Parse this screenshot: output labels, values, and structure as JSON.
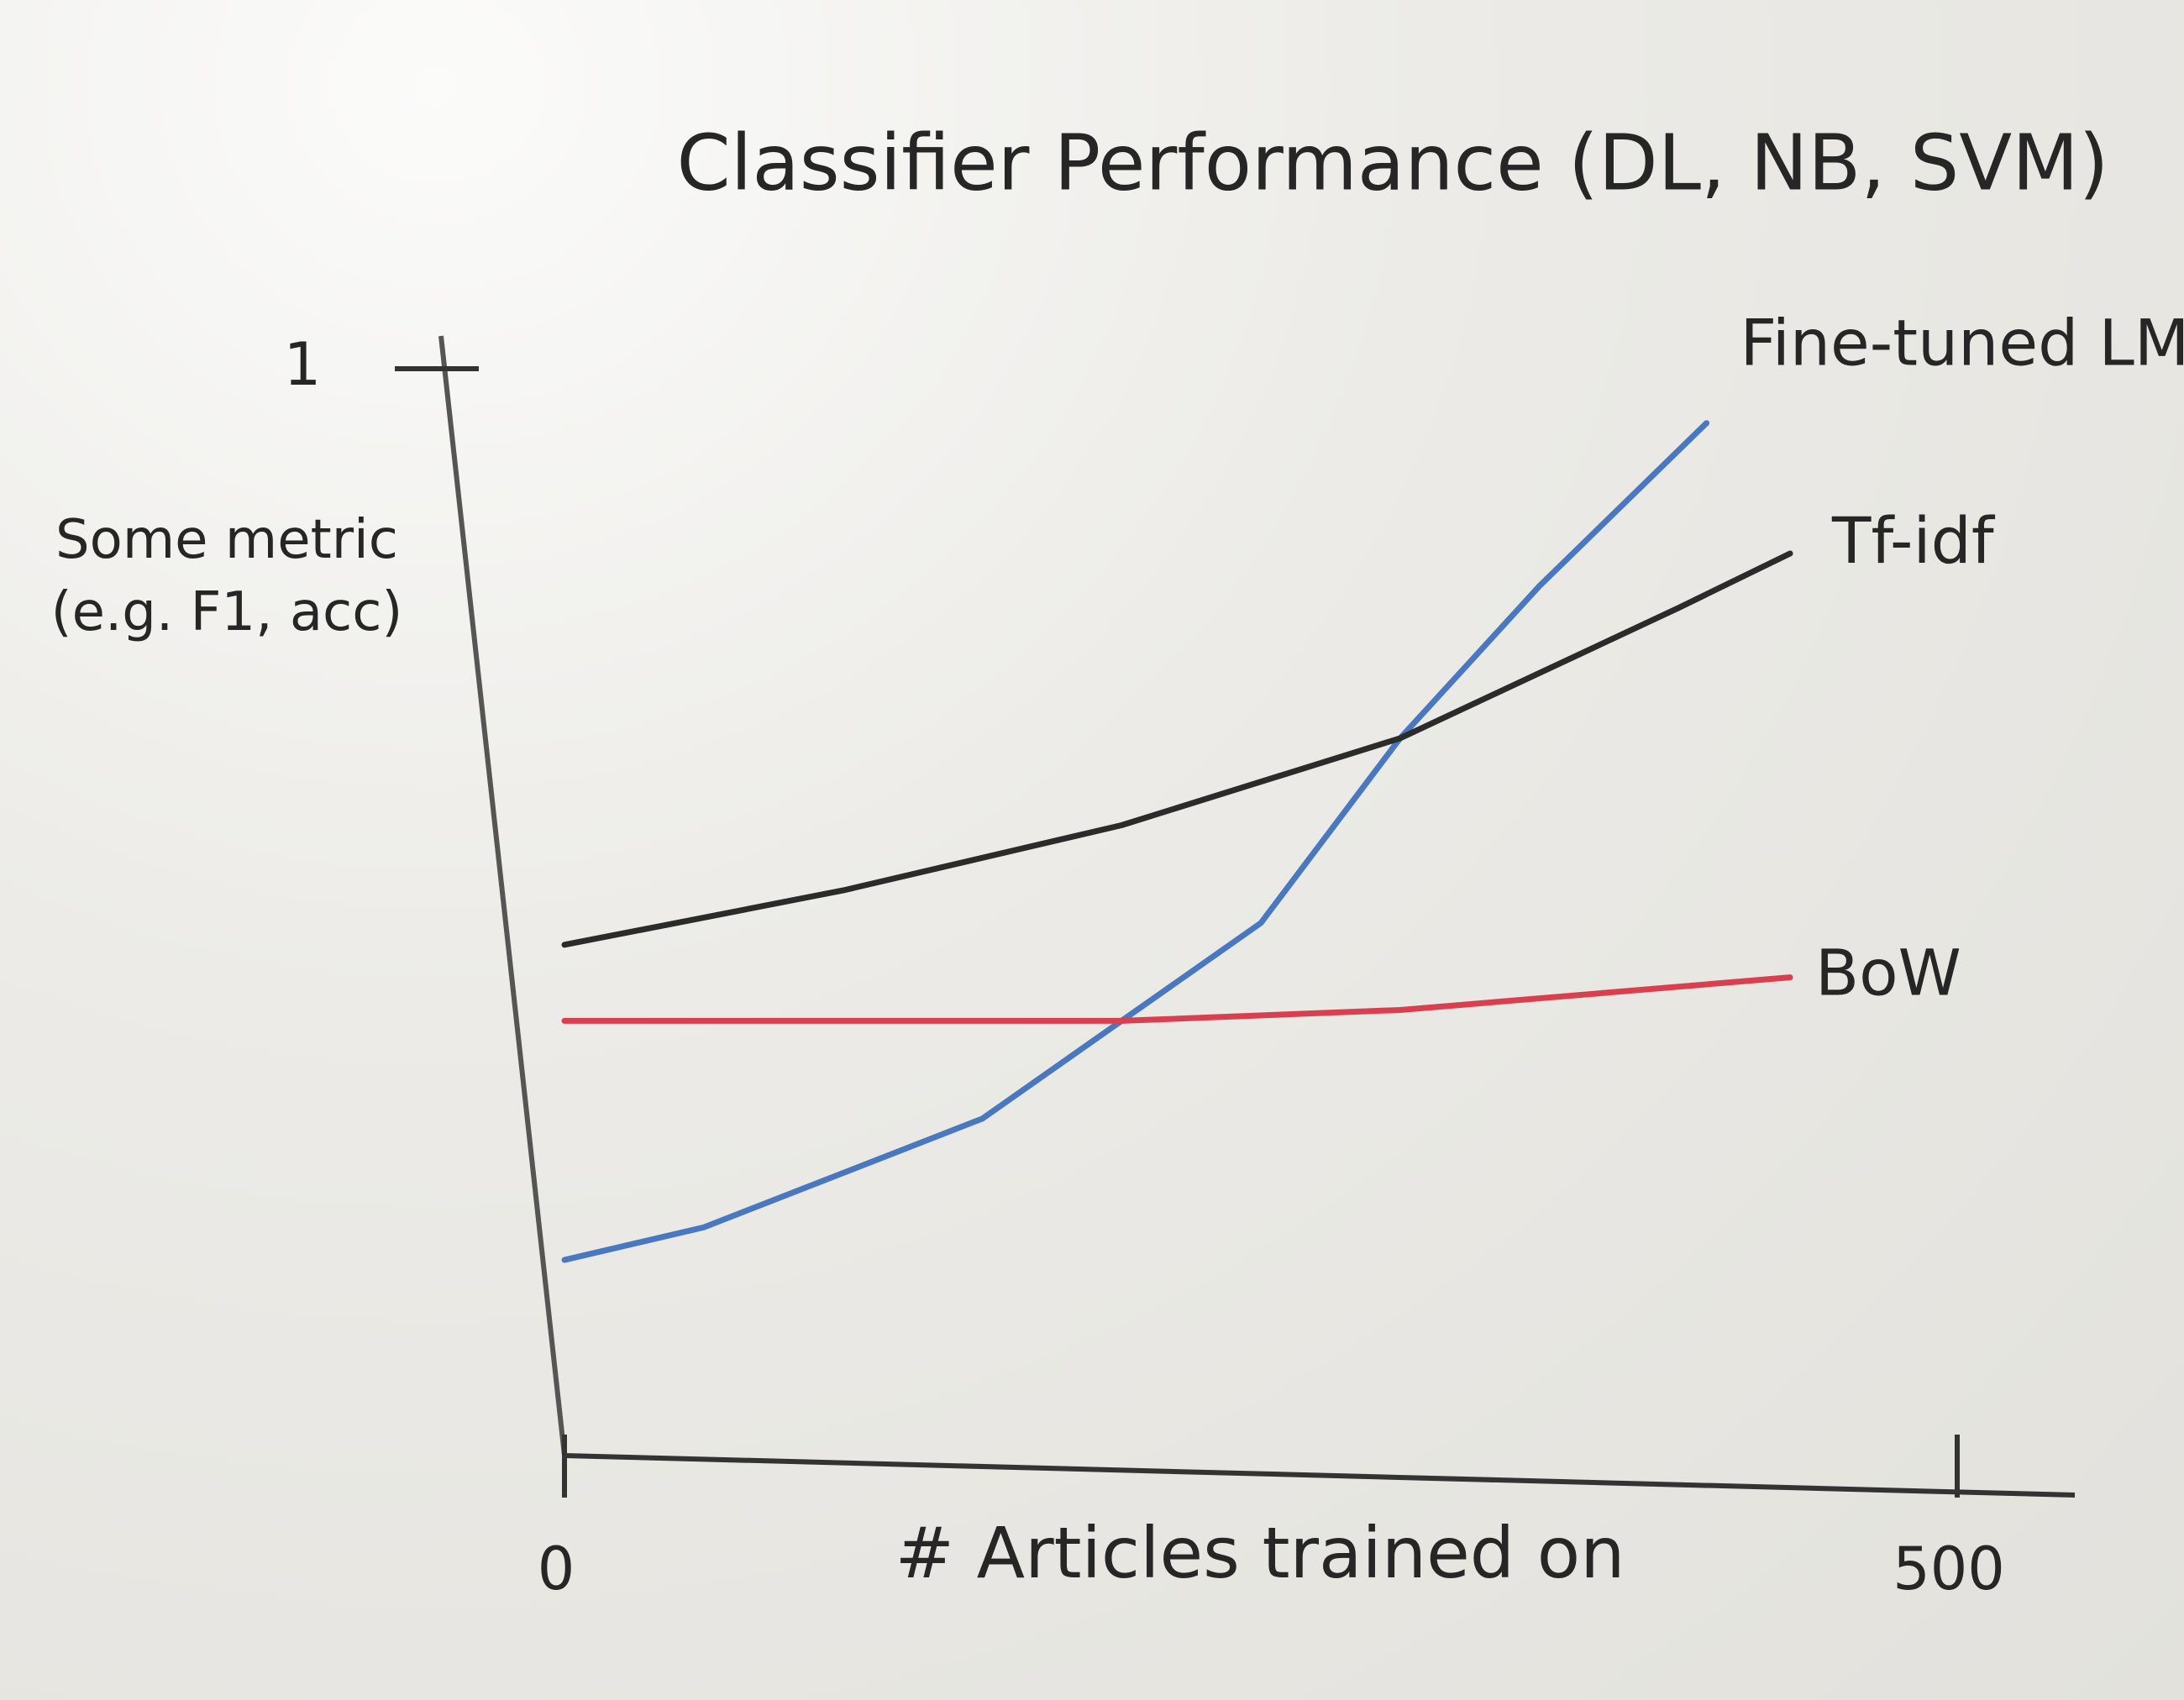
{
  "chart_data": {
    "type": "line",
    "title": "Classifier Performance (DL, NB, SVM)",
    "x_label": "# Articles trained on",
    "y_label": "Some metric (e.g. F1, acc)",
    "xlim": [
      0,
      500
    ],
    "xticks": [
      0,
      500
    ],
    "ylim": [
      0,
      1
    ],
    "yticks": [
      1
    ],
    "series": [
      {
        "name": "Fine-tuned LM",
        "color": "#4a78c0",
        "x": [
          0,
          50,
          150,
          200,
          250,
          300,
          350,
          410
        ],
        "values": [
          0.18,
          0.21,
          0.31,
          0.4,
          0.49,
          0.66,
          0.8,
          0.95
        ]
      },
      {
        "name": "Tf-idf",
        "color": "#2b2b2b",
        "x": [
          0,
          100,
          200,
          300,
          350,
          400,
          440
        ],
        "values": [
          0.47,
          0.52,
          0.58,
          0.66,
          0.72,
          0.78,
          0.83
        ]
      },
      {
        "name": "BoW",
        "color": "#d9404f",
        "x": [
          0,
          100,
          200,
          300,
          440
        ],
        "values": [
          0.4,
          0.4,
          0.4,
          0.41,
          0.44
        ]
      }
    ]
  }
}
